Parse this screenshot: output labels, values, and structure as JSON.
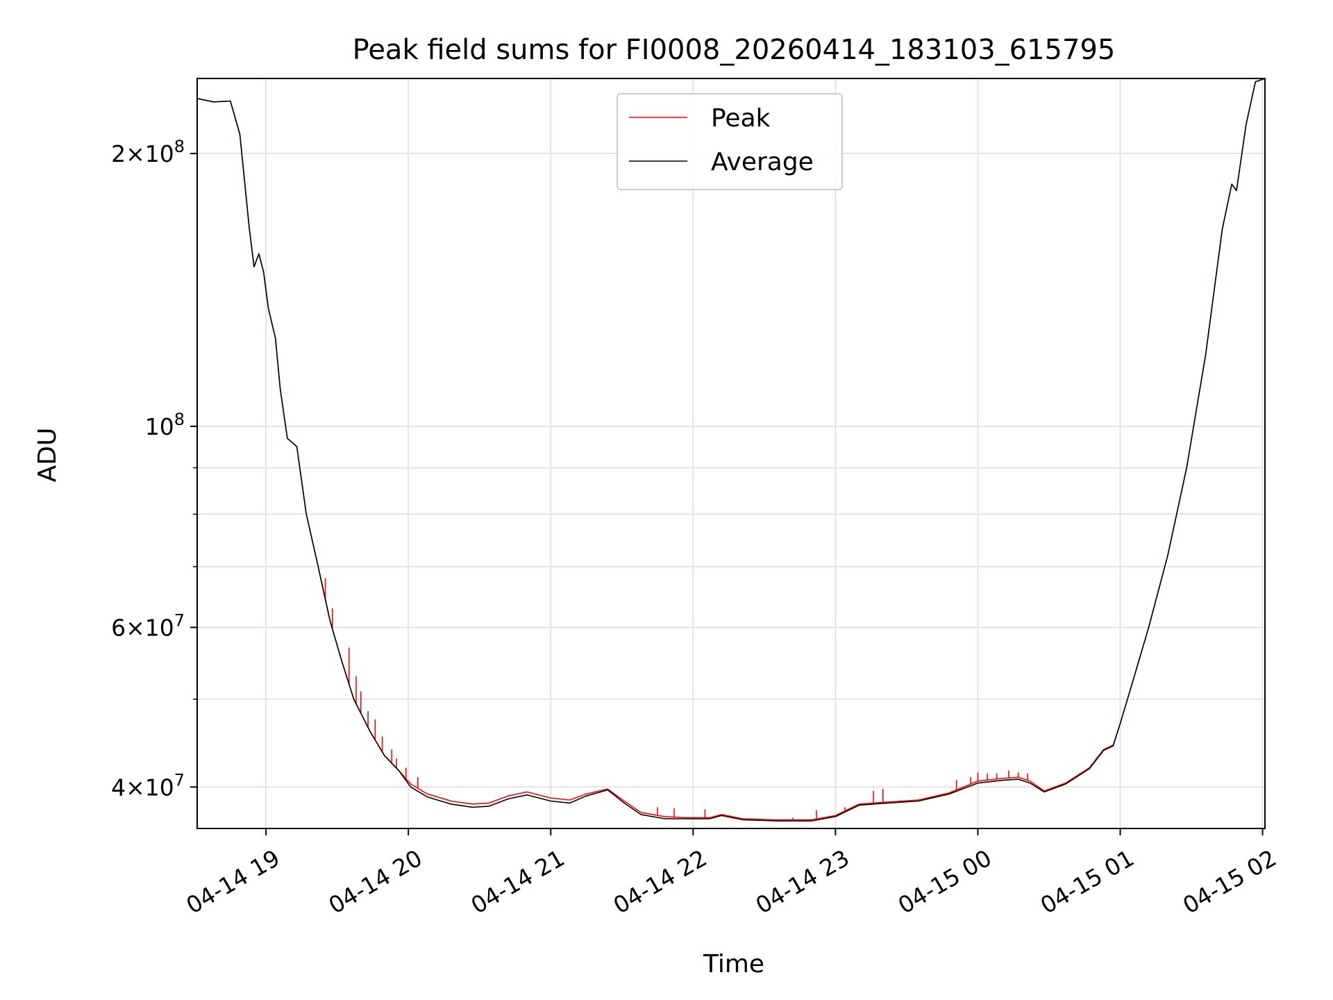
{
  "chart_data": {
    "type": "line",
    "title": "Peak field sums for FI0008_20260414_183103_615795",
    "xlabel": "Time",
    "ylabel": "ADU",
    "y_scale": "log",
    "xlim": [
      "2026-04-14T18:31",
      "2026-04-15T02:01"
    ],
    "ylim": [
      36000000,
      242000000
    ],
    "grid": true,
    "legend_position": "upper center",
    "x_ticks": [
      {
        "t": "2026-04-14T19:00",
        "label": "04-14 19"
      },
      {
        "t": "2026-04-14T20:00",
        "label": "04-14 20"
      },
      {
        "t": "2026-04-14T21:00",
        "label": "04-14 21"
      },
      {
        "t": "2026-04-14T22:00",
        "label": "04-14 22"
      },
      {
        "t": "2026-04-14T23:00",
        "label": "04-14 23"
      },
      {
        "t": "2026-04-15T00:00",
        "label": "04-15 00"
      },
      {
        "t": "2026-04-15T01:00",
        "label": "04-15 01"
      },
      {
        "t": "2026-04-15T02:00",
        "label": "04-15 02"
      }
    ],
    "y_major_ticks": [
      {
        "v": 40000000,
        "mant": "4",
        "exp": "7"
      },
      {
        "v": 60000000,
        "mant": "6",
        "exp": "7"
      },
      {
        "v": 100000000,
        "mant": "",
        "exp": "8"
      },
      {
        "v": 200000000,
        "mant": "2",
        "exp": "8"
      }
    ],
    "y_minor_ticks": [
      50000000,
      70000000,
      80000000,
      90000000
    ],
    "series": [
      {
        "name": "Peak",
        "color": "#ff0000",
        "points": [
          [
            "2026-04-14T18:31",
            230000000
          ],
          [
            "2026-04-14T18:38",
            228000000
          ],
          [
            "2026-04-14T18:45",
            228500000
          ],
          [
            "2026-04-14T18:49",
            210000000
          ],
          [
            "2026-04-14T18:53",
            165000000
          ],
          [
            "2026-04-14T18:55",
            150000000
          ],
          [
            "2026-04-14T18:57",
            155000000
          ],
          [
            "2026-04-14T18:59",
            148000000
          ],
          [
            "2026-04-14T19:01",
            135000000
          ],
          [
            "2026-04-14T19:04",
            125000000
          ],
          [
            "2026-04-14T19:06",
            110000000
          ],
          [
            "2026-04-14T19:09",
            97000000
          ],
          [
            "2026-04-14T19:13",
            95000000
          ],
          [
            "2026-04-14T19:17",
            80000000
          ],
          [
            "2026-04-14T19:22",
            70000000
          ],
          [
            "2026-04-14T19:27",
            61000000
          ],
          [
            "2026-04-14T19:32",
            55000000
          ],
          [
            "2026-04-14T19:37",
            50000000
          ],
          [
            "2026-04-14T19:44",
            46000000
          ],
          [
            "2026-04-14T19:50",
            43300000
          ],
          [
            "2026-04-14T19:56",
            41700000
          ],
          [
            "2026-04-14T20:01",
            40300000
          ],
          [
            "2026-04-14T20:08",
            39300000
          ],
          [
            "2026-04-14T20:18",
            38600000
          ],
          [
            "2026-04-14T20:27",
            38300000
          ],
          [
            "2026-04-14T20:34",
            38400000
          ],
          [
            "2026-04-14T20:42",
            39100000
          ],
          [
            "2026-04-14T20:50",
            39500000
          ],
          [
            "2026-04-14T21:00",
            38900000
          ],
          [
            "2026-04-14T21:08",
            38700000
          ],
          [
            "2026-04-14T21:15",
            39300000
          ],
          [
            "2026-04-14T21:24",
            39800000
          ],
          [
            "2026-04-14T21:31",
            38600000
          ],
          [
            "2026-04-14T21:38",
            37500000
          ],
          [
            "2026-04-14T21:48",
            37100000
          ],
          [
            "2026-04-14T21:58",
            37000000
          ],
          [
            "2026-04-14T22:07",
            37000000
          ],
          [
            "2026-04-14T22:12",
            37300000
          ],
          [
            "2026-04-14T22:21",
            36900000
          ],
          [
            "2026-04-14T22:35",
            36800000
          ],
          [
            "2026-04-14T22:50",
            36800000
          ],
          [
            "2026-04-14T23:00",
            37200000
          ],
          [
            "2026-04-14T23:10",
            38300000
          ],
          [
            "2026-04-14T23:22",
            38500000
          ],
          [
            "2026-04-14T23:35",
            38700000
          ],
          [
            "2026-04-14T23:48",
            39400000
          ],
          [
            "2026-04-15T00:00",
            40600000
          ],
          [
            "2026-04-15T00:11",
            40900000
          ],
          [
            "2026-04-15T00:17",
            41000000
          ],
          [
            "2026-04-15T00:22",
            40600000
          ],
          [
            "2026-04-15T00:28",
            39600000
          ],
          [
            "2026-04-15T00:37",
            40400000
          ],
          [
            "2026-04-15T00:47",
            42000000
          ],
          [
            "2026-04-15T00:53",
            44000000
          ],
          [
            "2026-04-15T00:57",
            44500000
          ],
          [
            "2026-04-15T01:00",
            47000000
          ],
          [
            "2026-04-15T01:05",
            52000000
          ],
          [
            "2026-04-15T01:12",
            60000000
          ],
          [
            "2026-04-15T01:20",
            72000000
          ],
          [
            "2026-04-15T01:28",
            90000000
          ],
          [
            "2026-04-15T01:36",
            120000000
          ],
          [
            "2026-04-15T01:43",
            165000000
          ],
          [
            "2026-04-15T01:47",
            185000000
          ],
          [
            "2026-04-15T01:49",
            182000000
          ],
          [
            "2026-04-15T01:53",
            215000000
          ],
          [
            "2026-04-15T01:57",
            240000000
          ],
          [
            "2026-04-15T02:01",
            242000000
          ]
        ],
        "spikes": [
          [
            "2026-04-14T19:25",
            68000000
          ],
          [
            "2026-04-14T19:28",
            63000000
          ],
          [
            "2026-04-14T19:35",
            57000000
          ],
          [
            "2026-04-14T19:38",
            53000000
          ],
          [
            "2026-04-14T19:40",
            51000000
          ],
          [
            "2026-04-14T19:43",
            48500000
          ],
          [
            "2026-04-14T19:46",
            47500000
          ],
          [
            "2026-04-14T19:49",
            45500000
          ],
          [
            "2026-04-14T19:53",
            44000000
          ],
          [
            "2026-04-14T19:55",
            43000000
          ],
          [
            "2026-04-14T19:59",
            42000000
          ],
          [
            "2026-04-14T20:04",
            41000000
          ],
          [
            "2026-04-14T21:45",
            38000000
          ],
          [
            "2026-04-14T21:52",
            37900000
          ],
          [
            "2026-04-14T22:05",
            37800000
          ],
          [
            "2026-04-14T22:42",
            37000000
          ],
          [
            "2026-04-14T22:52",
            37700000
          ],
          [
            "2026-04-14T23:04",
            38000000
          ],
          [
            "2026-04-14T23:16",
            39600000
          ],
          [
            "2026-04-14T23:20",
            39800000
          ],
          [
            "2026-04-14T23:51",
            40700000
          ],
          [
            "2026-04-14T23:57",
            41000000
          ],
          [
            "2026-04-15T00:00",
            41500000
          ],
          [
            "2026-04-15T00:04",
            41400000
          ],
          [
            "2026-04-15T00:08",
            41400000
          ],
          [
            "2026-04-15T00:13",
            41700000
          ],
          [
            "2026-04-15T00:17",
            41500000
          ],
          [
            "2026-04-15T00:21",
            41400000
          ]
        ]
      },
      {
        "name": "Average",
        "color": "#000000",
        "points": [
          [
            "2026-04-14T18:31",
            230000000
          ],
          [
            "2026-04-14T18:38",
            228000000
          ],
          [
            "2026-04-14T18:45",
            228500000
          ],
          [
            "2026-04-14T18:49",
            210000000
          ],
          [
            "2026-04-14T18:53",
            165000000
          ],
          [
            "2026-04-14T18:55",
            150000000
          ],
          [
            "2026-04-14T18:57",
            155000000
          ],
          [
            "2026-04-14T18:59",
            148000000
          ],
          [
            "2026-04-14T19:01",
            135000000
          ],
          [
            "2026-04-14T19:04",
            125000000
          ],
          [
            "2026-04-14T19:06",
            110000000
          ],
          [
            "2026-04-14T19:09",
            97000000
          ],
          [
            "2026-04-14T19:13",
            95000000
          ],
          [
            "2026-04-14T19:17",
            80000000
          ],
          [
            "2026-04-14T19:22",
            70000000
          ],
          [
            "2026-04-14T19:27",
            61000000
          ],
          [
            "2026-04-14T19:32",
            55000000
          ],
          [
            "2026-04-14T19:37",
            50000000
          ],
          [
            "2026-04-14T19:44",
            46000000
          ],
          [
            "2026-04-14T19:50",
            43300000
          ],
          [
            "2026-04-14T19:56",
            41700000
          ],
          [
            "2026-04-14T20:01",
            40000000
          ],
          [
            "2026-04-14T20:08",
            39000000
          ],
          [
            "2026-04-14T20:18",
            38300000
          ],
          [
            "2026-04-14T20:27",
            38000000
          ],
          [
            "2026-04-14T20:34",
            38100000
          ],
          [
            "2026-04-14T20:42",
            38800000
          ],
          [
            "2026-04-14T20:50",
            39200000
          ],
          [
            "2026-04-14T21:00",
            38600000
          ],
          [
            "2026-04-14T21:08",
            38400000
          ],
          [
            "2026-04-14T21:15",
            39100000
          ],
          [
            "2026-04-14T21:24",
            39700000
          ],
          [
            "2026-04-14T21:31",
            38400000
          ],
          [
            "2026-04-14T21:38",
            37300000
          ],
          [
            "2026-04-14T21:48",
            36900000
          ],
          [
            "2026-04-14T21:58",
            36900000
          ],
          [
            "2026-04-14T22:07",
            36900000
          ],
          [
            "2026-04-14T22:12",
            37200000
          ],
          [
            "2026-04-14T22:21",
            36800000
          ],
          [
            "2026-04-14T22:35",
            36700000
          ],
          [
            "2026-04-14T22:50",
            36700000
          ],
          [
            "2026-04-14T23:00",
            37100000
          ],
          [
            "2026-04-14T23:10",
            38200000
          ],
          [
            "2026-04-14T23:22",
            38400000
          ],
          [
            "2026-04-14T23:35",
            38600000
          ],
          [
            "2026-04-14T23:48",
            39300000
          ],
          [
            "2026-04-15T00:00",
            40400000
          ],
          [
            "2026-04-15T00:11",
            40700000
          ],
          [
            "2026-04-15T00:17",
            40800000
          ],
          [
            "2026-04-15T00:22",
            40400000
          ],
          [
            "2026-04-15T00:28",
            39500000
          ],
          [
            "2026-04-15T00:37",
            40300000
          ],
          [
            "2026-04-15T00:47",
            41900000
          ],
          [
            "2026-04-15T00:53",
            43900000
          ],
          [
            "2026-04-15T00:57",
            44400000
          ],
          [
            "2026-04-15T01:00",
            47000000
          ],
          [
            "2026-04-15T01:05",
            52000000
          ],
          [
            "2026-04-15T01:12",
            60000000
          ],
          [
            "2026-04-15T01:20",
            72000000
          ],
          [
            "2026-04-15T01:28",
            90000000
          ],
          [
            "2026-04-15T01:36",
            120000000
          ],
          [
            "2026-04-15T01:43",
            165000000
          ],
          [
            "2026-04-15T01:47",
            185000000
          ],
          [
            "2026-04-15T01:49",
            182000000
          ],
          [
            "2026-04-15T01:53",
            215000000
          ],
          [
            "2026-04-15T01:57",
            240000000
          ],
          [
            "2026-04-15T02:01",
            242000000
          ]
        ]
      }
    ]
  }
}
